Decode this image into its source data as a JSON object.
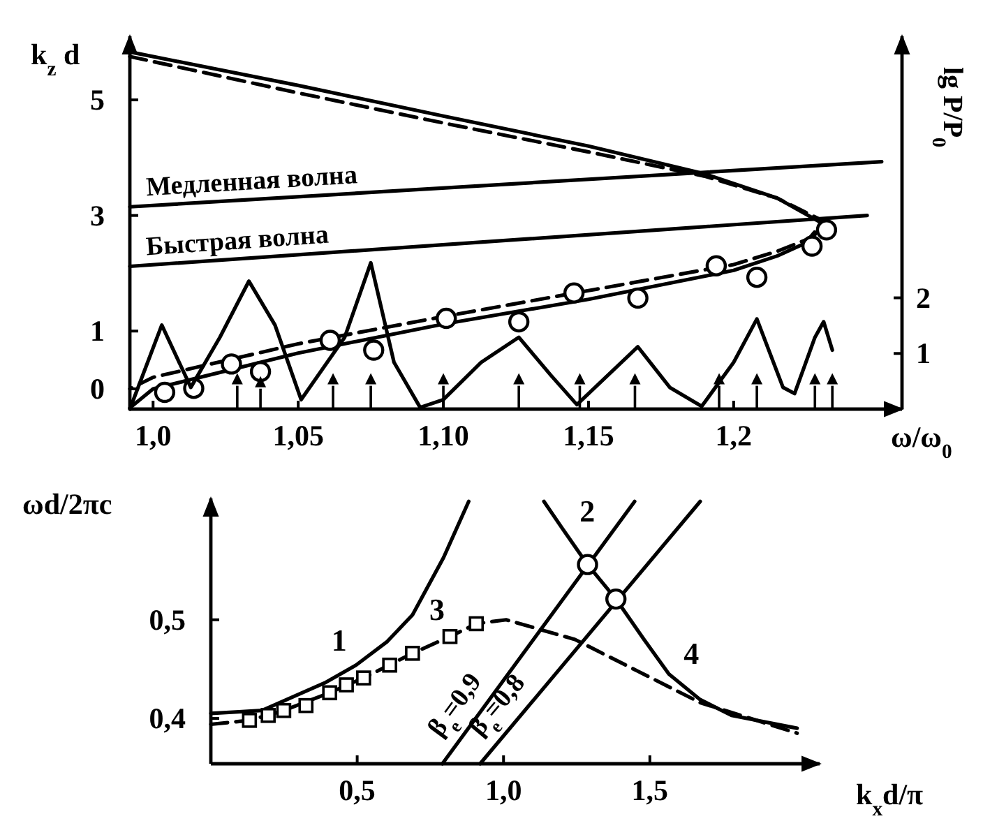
{
  "chart_data": [
    {
      "type": "line",
      "xlabel": "ω/ω$_{0}$",
      "ylabel": "k$_{z}$ d",
      "y2label": "lg P/P$_{0}$",
      "xlim": [
        0.992,
        1.258
      ],
      "xticks": [
        {
          "value": 1.0,
          "label": "1,0"
        },
        {
          "value": 1.05,
          "label": "1,05"
        },
        {
          "value": 1.1,
          "label": "1,10"
        },
        {
          "value": 1.15,
          "label": "1,15"
        },
        {
          "value": 1.2,
          "label": "1,2"
        }
      ],
      "ylim": [
        -0.35,
        6.1
      ],
      "yticks": [
        0,
        1,
        3,
        5
      ],
      "y2lim": [
        0,
        6.7
      ],
      "y2ticks": [
        1,
        2
      ],
      "grid": false,
      "legend": false,
      "series": [
        {
          "color": "#000000",
          "line_style": "solid",
          "marker": "none",
          "x": [
            0.992,
            1.05,
            1.1,
            1.15,
            1.19,
            1.215,
            1.231,
            1.226,
            1.215,
            1.2,
            1.15,
            1.1,
            1.05,
            1.0,
            0.992
          ],
          "values": [
            5.83,
            5.25,
            4.72,
            4.2,
            3.72,
            3.3,
            2.85,
            2.55,
            2.3,
            2.05,
            1.55,
            1.12,
            0.62,
            0.0,
            -0.33
          ]
        },
        {
          "color": "#000000",
          "line_style": "dashed",
          "marker": "none",
          "x": [
            0.992,
            1.05,
            1.1,
            1.15,
            1.19,
            1.215,
            1.231,
            1.226,
            1.215,
            1.2,
            1.15,
            1.1,
            1.05,
            1.0,
            0.992
          ],
          "values": [
            5.75,
            5.12,
            4.6,
            4.1,
            3.68,
            3.3,
            2.9,
            2.6,
            2.38,
            2.15,
            1.7,
            1.25,
            0.78,
            0.2,
            0.0
          ]
        },
        {
          "name": "Медленная волна",
          "color": "#000000",
          "line_style": "solid",
          "marker": "none",
          "x": [
            0.992,
            1.251
          ],
          "values": [
            3.15,
            3.93
          ]
        },
        {
          "name": "Быстрая волна",
          "color": "#000000",
          "line_style": "solid",
          "marker": "none",
          "x": [
            0.992,
            1.246
          ],
          "values": [
            2.12,
            3.0
          ]
        },
        {
          "type": "scatter",
          "color": "#000000",
          "marker": "circle",
          "x": [
            1.004,
            1.014,
            1.027,
            1.037,
            1.061,
            1.076,
            1.101,
            1.126,
            1.145,
            1.167,
            1.194,
            1.208,
            1.227,
            1.232
          ],
          "values": [
            -0.06,
            0.01,
            0.43,
            0.3,
            0.84,
            0.67,
            1.22,
            1.16,
            1.66,
            1.57,
            2.13,
            1.93,
            2.47,
            2.75
          ]
        },
        {
          "axis": "y2",
          "color": "#000000",
          "line_style": "solid",
          "marker": "none",
          "x": [
            0.992,
            1.003,
            1.013,
            1.023,
            1.033,
            1.042,
            1.051,
            1.066,
            1.075,
            1.083,
            1.092,
            1.1,
            1.113,
            1.126,
            1.137,
            1.146,
            1.167,
            1.178,
            1.189,
            1.2,
            1.208,
            1.217,
            1.221,
            1.228,
            1.231,
            1.234
          ],
          "values": [
            0.0,
            1.51,
            0.39,
            1.29,
            2.3,
            1.51,
            0.17,
            1.29,
            2.63,
            0.84,
            0.03,
            0.17,
            0.84,
            1.29,
            0.61,
            0.08,
            1.12,
            0.39,
            0.05,
            0.84,
            1.62,
            0.39,
            0.28,
            1.29,
            1.57,
            1.06
          ]
        },
        {
          "type": "scatter",
          "color": "#000000",
          "marker": "triangle",
          "x": [
            1.029,
            1.037,
            1.062,
            1.075,
            1.1,
            1.126,
            1.147,
            1.166,
            1.195,
            1.208,
            1.228,
            1.234
          ],
          "values": [
            0.15,
            0.1,
            0.15,
            0.15,
            0.15,
            0.15,
            0.15,
            0.15,
            0.15,
            0.15,
            0.15,
            0.15
          ]
        }
      ]
    },
    {
      "type": "line",
      "xlabel": "k$_{x}$d/π",
      "ylabel": "ωd/2πc",
      "xlim": [
        0,
        2.08
      ],
      "xticks": [
        {
          "value": 0.5,
          "label": "0,5"
        },
        {
          "value": 1.0,
          "label": "1,0"
        },
        {
          "value": 1.5,
          "label": "1,5"
        }
      ],
      "ylim": [
        0.354,
        0.623
      ],
      "yticks": [
        {
          "value": 0.4,
          "label": "0,4"
        },
        {
          "value": 0.5,
          "label": "0,5"
        }
      ],
      "grid": false,
      "legend": false,
      "series": [
        {
          "name": "1",
          "color": "#000000",
          "line_style": "solid",
          "marker": "none",
          "x": [
            0,
            0.175,
            0.282,
            0.389,
            0.496,
            0.603,
            0.689,
            0.795,
            0.881
          ],
          "values": [
            0.405,
            0.408,
            0.422,
            0.436,
            0.454,
            0.478,
            0.505,
            0.563,
            0.62
          ]
        },
        {
          "name": "2",
          "color": "#000000",
          "line_style": "solid",
          "marker": "none",
          "x": [
            1.138,
            1.2,
            1.287,
            1.384
          ],
          "values": [
            0.62,
            0.593,
            0.556,
            0.521
          ]
        },
        {
          "name": "4",
          "color": "#000000",
          "line_style": "solid",
          "marker": "none",
          "x": [
            1.384,
            1.48,
            1.565,
            1.672,
            1.779,
            2.003
          ],
          "values": [
            0.521,
            0.48,
            0.445,
            0.419,
            0.403,
            0.39
          ]
        },
        {
          "name": "3",
          "color": "#000000",
          "line_style": "dashed",
          "marker": "none",
          "x": [
            0,
            0.132,
            0.249,
            0.406,
            0.522,
            0.689,
            0.817,
            0.907,
            1.009,
            1.244,
            1.458,
            1.672,
            2.003
          ],
          "values": [
            0.394,
            0.398,
            0.408,
            0.426,
            0.441,
            0.466,
            0.483,
            0.496,
            0.5,
            0.48,
            0.448,
            0.416,
            0.385
          ]
        },
        {
          "name": "β$_{e}$=0,9",
          "color": "#000000",
          "line_style": "solid",
          "marker": "none",
          "x": [
            0.791,
            1.448
          ],
          "values": [
            0.354,
            0.62
          ]
        },
        {
          "name": "β$_{e}$=0,8",
          "color": "#000000",
          "line_style": "solid",
          "marker": "none",
          "x": [
            0.92,
            1.672
          ],
          "values": [
            0.354,
            0.62
          ]
        },
        {
          "type": "scatter",
          "color": "#000000",
          "marker": "square",
          "x": [
            0.132,
            0.196,
            0.249,
            0.325,
            0.406,
            0.463,
            0.522,
            0.611,
            0.689,
            0.817,
            0.907
          ],
          "values": [
            0.398,
            0.403,
            0.408,
            0.413,
            0.426,
            0.434,
            0.441,
            0.454,
            0.466,
            0.483,
            0.496
          ]
        },
        {
          "type": "scatter",
          "color": "#000000",
          "marker": "circle",
          "x": [
            1.287,
            1.384
          ],
          "values": [
            0.556,
            0.521
          ]
        }
      ]
    }
  ]
}
